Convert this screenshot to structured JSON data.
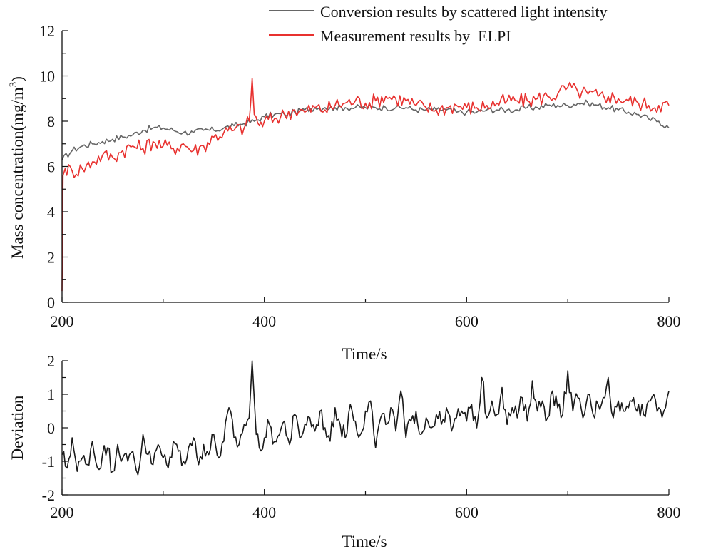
{
  "chart_data": [
    {
      "id": "top",
      "type": "line",
      "xlabel": "Time/s",
      "ylabel_main": "Mass concentration(mg/m",
      "ylabel_sup": "3",
      "ylabel_close": ")",
      "xlim": [
        200,
        800
      ],
      "ylim": [
        0,
        12
      ],
      "xticks": [
        200,
        400,
        600,
        800
      ],
      "xtick_labels": [
        "200",
        "400",
        "600",
        "800"
      ],
      "yticks": [
        0,
        2,
        4,
        6,
        8,
        10,
        12
      ],
      "ytick_labels": [
        "0",
        "2",
        "4",
        "6",
        "8",
        "10",
        "12"
      ],
      "legend_position": "top-right",
      "series": [
        {
          "name": "Conversion results by scattered light intensity",
          "color": "#666666",
          "x": [
            200,
            210,
            220,
            230,
            240,
            250,
            260,
            270,
            280,
            290,
            300,
            310,
            320,
            330,
            340,
            350,
            360,
            370,
            380,
            390,
            400,
            410,
            420,
            430,
            440,
            450,
            460,
            470,
            480,
            490,
            500,
            510,
            520,
            530,
            540,
            550,
            560,
            570,
            580,
            590,
            600,
            610,
            620,
            630,
            640,
            650,
            660,
            670,
            680,
            690,
            700,
            710,
            720,
            730,
            740,
            750,
            760,
            770,
            780,
            790,
            800
          ],
          "y": [
            6.3,
            6.7,
            6.9,
            7.0,
            7.1,
            7.2,
            7.3,
            7.4,
            7.6,
            7.7,
            7.7,
            7.6,
            7.5,
            7.5,
            7.6,
            7.6,
            7.7,
            7.8,
            7.9,
            8.0,
            8.2,
            8.3,
            8.3,
            8.4,
            8.5,
            8.6,
            8.6,
            8.6,
            8.6,
            8.6,
            8.6,
            8.6,
            8.6,
            8.6,
            8.6,
            8.5,
            8.5,
            8.5,
            8.5,
            8.4,
            8.4,
            8.4,
            8.5,
            8.5,
            8.5,
            8.5,
            8.6,
            8.6,
            8.7,
            8.7,
            8.7,
            8.8,
            8.8,
            8.7,
            8.6,
            8.5,
            8.4,
            8.3,
            8.1,
            8.0,
            7.7
          ]
        },
        {
          "name": "Measurement results by  ELPI",
          "color": "#e8312f",
          "x": [
            200,
            201,
            203,
            210,
            220,
            230,
            240,
            250,
            260,
            270,
            280,
            290,
            300,
            310,
            320,
            330,
            340,
            350,
            360,
            370,
            380,
            385,
            388,
            390,
            395,
            400,
            410,
            420,
            430,
            440,
            450,
            460,
            470,
            480,
            490,
            500,
            510,
            520,
            530,
            540,
            550,
            560,
            570,
            580,
            590,
            600,
            610,
            620,
            630,
            640,
            650,
            660,
            670,
            680,
            690,
            700,
            710,
            720,
            730,
            740,
            750,
            760,
            770,
            780,
            790,
            800
          ],
          "y": [
            0.5,
            5.6,
            5.9,
            5.8,
            5.9,
            6.2,
            6.5,
            6.4,
            6.7,
            6.9,
            6.8,
            7.1,
            6.9,
            6.8,
            7.0,
            6.7,
            6.9,
            7.3,
            7.5,
            7.6,
            7.7,
            8.0,
            9.9,
            8.3,
            7.8,
            8.0,
            8.1,
            8.3,
            8.5,
            8.4,
            8.6,
            8.5,
            8.7,
            8.8,
            8.9,
            8.8,
            8.9,
            9.1,
            9.0,
            8.9,
            8.7,
            8.6,
            8.5,
            8.6,
            8.7,
            8.6,
            8.6,
            8.7,
            8.8,
            8.9,
            8.9,
            8.9,
            9.0,
            9.1,
            9.2,
            9.5,
            9.3,
            9.2,
            9.1,
            9.1,
            9.0,
            8.9,
            8.8,
            8.7,
            8.7,
            8.7
          ]
        }
      ]
    },
    {
      "id": "bottom",
      "type": "line",
      "xlabel": "Time/s",
      "ylabel": "Deviation",
      "xlim": [
        200,
        800
      ],
      "ylim": [
        -2,
        2
      ],
      "xticks": [
        200,
        400,
        600,
        800
      ],
      "xtick_labels": [
        "200",
        "400",
        "600",
        "800"
      ],
      "yticks": [
        -2,
        -1,
        0,
        1,
        2
      ],
      "ytick_labels": [
        "-2",
        "-1",
        "0",
        "1",
        "2"
      ],
      "series": [
        {
          "name": "Deviation",
          "color": "#1a1a1a",
          "x": [
            200,
            205,
            210,
            215,
            220,
            225,
            230,
            235,
            240,
            245,
            250,
            255,
            260,
            265,
            270,
            275,
            280,
            285,
            290,
            295,
            300,
            305,
            310,
            315,
            320,
            325,
            330,
            335,
            340,
            345,
            350,
            355,
            360,
            365,
            370,
            375,
            380,
            385,
            388,
            392,
            395,
            400,
            405,
            410,
            415,
            420,
            425,
            430,
            435,
            440,
            445,
            450,
            455,
            460,
            465,
            470,
            475,
            480,
            485,
            490,
            495,
            500,
            505,
            510,
            515,
            520,
            525,
            530,
            535,
            540,
            545,
            550,
            555,
            560,
            565,
            570,
            575,
            580,
            585,
            590,
            595,
            600,
            605,
            610,
            615,
            620,
            625,
            630,
            635,
            640,
            645,
            650,
            655,
            660,
            665,
            670,
            675,
            680,
            685,
            690,
            695,
            700,
            705,
            710,
            715,
            720,
            725,
            730,
            735,
            740,
            745,
            750,
            755,
            760,
            765,
            770,
            775,
            780,
            785,
            790,
            795,
            800
          ],
          "y": [
            -0.8,
            -1.2,
            -0.3,
            -1.3,
            -0.9,
            -1.1,
            -0.4,
            -1.2,
            -0.8,
            -0.6,
            -1.3,
            -0.5,
            -0.9,
            -1.0,
            -0.7,
            -1.4,
            -0.2,
            -0.8,
            -1.1,
            -0.5,
            -0.9,
            -1.2,
            -0.4,
            -0.7,
            -1.0,
            -0.6,
            -0.3,
            -1.1,
            -0.5,
            -0.8,
            -0.2,
            -0.9,
            -0.4,
            0.6,
            -0.3,
            -0.5,
            0.1,
            0.3,
            2.0,
            -0.2,
            -0.6,
            -0.3,
            0.1,
            -0.4,
            -0.2,
            0.2,
            -0.5,
            0.4,
            -0.3,
            0.1,
            0.3,
            -0.1,
            0.5,
            0.0,
            -0.4,
            0.6,
            0.1,
            -0.3,
            0.7,
            0.2,
            -0.2,
            0.5,
            0.8,
            -0.6,
            0.3,
            0.1,
            0.6,
            -0.1,
            1.1,
            -0.3,
            0.2,
            0.5,
            -0.2,
            0.3,
            0.0,
            0.4,
            0.1,
            0.6,
            -0.1,
            0.3,
            0.5,
            0.2,
            0.7,
            0.0,
            1.5,
            0.3,
            0.8,
            0.4,
            1.2,
            0.1,
            0.6,
            0.3,
            0.9,
            0.2,
            1.4,
            0.5,
            0.8,
            0.3,
            1.1,
            0.6,
            0.4,
            1.7,
            0.5,
            0.9,
            0.3,
            1.0,
            0.4,
            0.7,
            0.9,
            1.5,
            0.3,
            0.8,
            0.5,
            0.6,
            0.9,
            0.7,
            0.4,
            0.8,
            1.0,
            0.6,
            0.5,
            1.1
          ]
        }
      ]
    }
  ]
}
